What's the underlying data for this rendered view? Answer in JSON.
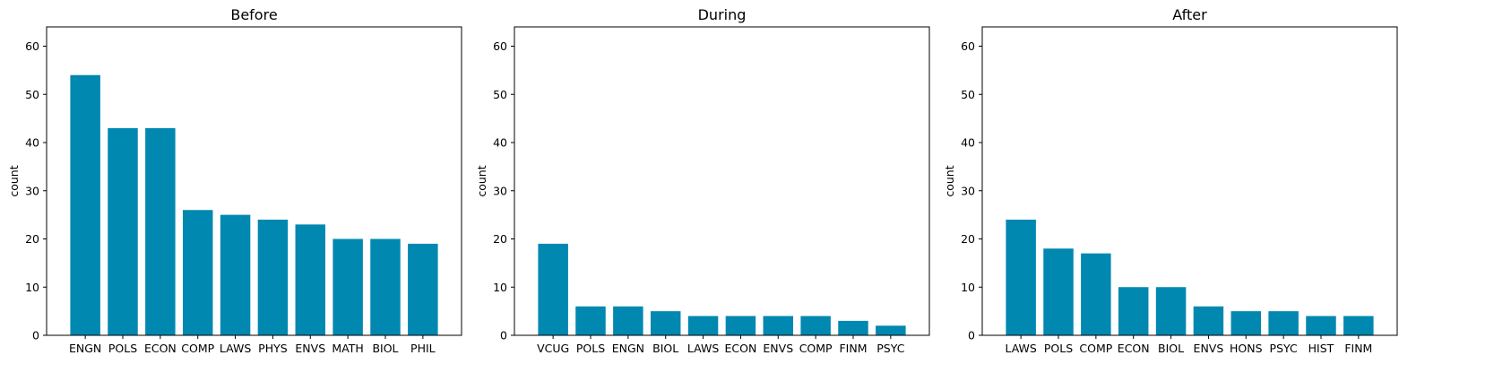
{
  "chart_data": [
    {
      "type": "bar",
      "title": "Before",
      "xlabel": "",
      "ylabel": "count",
      "ylim": [
        0,
        64
      ],
      "yticks": [
        0,
        10,
        20,
        30,
        40,
        50,
        60
      ],
      "categories": [
        "ENGN",
        "POLS",
        "ECON",
        "COMP",
        "LAWS",
        "PHYS",
        "ENVS",
        "MATH",
        "BIOL",
        "PHIL"
      ],
      "values": [
        54,
        43,
        43,
        26,
        25,
        24,
        23,
        20,
        20,
        19
      ],
      "color": "#0088b0"
    },
    {
      "type": "bar",
      "title": "During",
      "xlabel": "",
      "ylabel": "count",
      "ylim": [
        0,
        64
      ],
      "yticks": [
        0,
        10,
        20,
        30,
        40,
        50,
        60
      ],
      "categories": [
        "VCUG",
        "POLS",
        "ENGN",
        "BIOL",
        "LAWS",
        "ECON",
        "ENVS",
        "COMP",
        "FINM",
        "PSYC"
      ],
      "values": [
        19,
        6,
        6,
        5,
        4,
        4,
        4,
        4,
        3,
        2
      ],
      "color": "#0088b0"
    },
    {
      "type": "bar",
      "title": "After",
      "xlabel": "",
      "ylabel": "count",
      "ylim": [
        0,
        64
      ],
      "yticks": [
        0,
        10,
        20,
        30,
        40,
        50,
        60
      ],
      "categories": [
        "LAWS",
        "POLS",
        "COMP",
        "ECON",
        "BIOL",
        "ENVS",
        "HONS",
        "PSYC",
        "HIST",
        "FINM"
      ],
      "values": [
        24,
        18,
        17,
        10,
        10,
        6,
        5,
        5,
        4,
        4
      ],
      "color": "#0088b0"
    }
  ]
}
